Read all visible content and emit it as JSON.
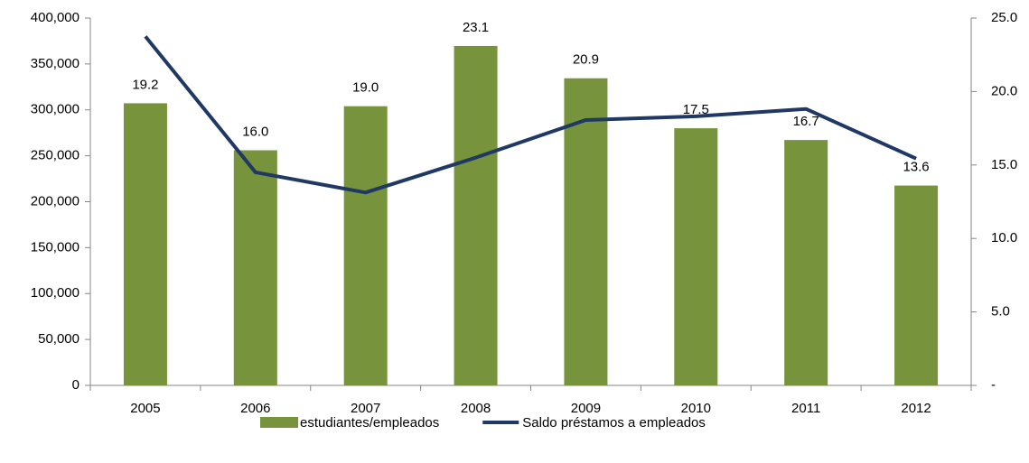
{
  "chart_data": {
    "type": "bar",
    "categories": [
      "2005",
      "2006",
      "2007",
      "2008",
      "2009",
      "2010",
      "2011",
      "2012"
    ],
    "series": [
      {
        "name": "estudiantes/empleados",
        "type": "bar",
        "axis": "y2",
        "color": "#77933c",
        "values": [
          19.2,
          16.0,
          19.0,
          23.1,
          20.9,
          17.5,
          16.7,
          13.6
        ],
        "value_labels": [
          "19.2",
          "16.0",
          "19.0",
          "23.1",
          "20.9",
          "17.5",
          "16.7",
          "13.6"
        ]
      },
      {
        "name": "Saldo préstamos a empleados",
        "type": "line",
        "axis": "y",
        "color": "#1f3864",
        "values": [
          380000,
          232000,
          210000,
          248000,
          289000,
          293000,
          301000,
          247000
        ]
      }
    ],
    "ylim": [
      0,
      400000
    ],
    "yticks": [
      0,
      {
        "value": 50000,
        "label": "50,000"
      },
      {
        "value": 100000,
        "label": "100,000"
      },
      {
        "value": 150000,
        "label": "150,000"
      },
      {
        "value": 200000,
        "label": "200,000"
      },
      {
        "value": 250000,
        "label": "250,000"
      },
      {
        "value": 300000,
        "label": "300,000"
      },
      {
        "value": 350000,
        "label": "350,000"
      },
      {
        "value": 400000,
        "label": "400,000"
      }
    ],
    "y2lim": [
      0,
      25
    ],
    "y2ticks": [
      {
        "value": 0,
        "label": "-"
      },
      {
        "value": 5,
        "label": "5.0"
      },
      {
        "value": 10,
        "label": "10.0"
      },
      {
        "value": 15,
        "label": "15.0"
      },
      {
        "value": 20,
        "label": "20.0"
      },
      {
        "value": 25,
        "label": "25.0"
      }
    ],
    "legend": "bottom"
  }
}
